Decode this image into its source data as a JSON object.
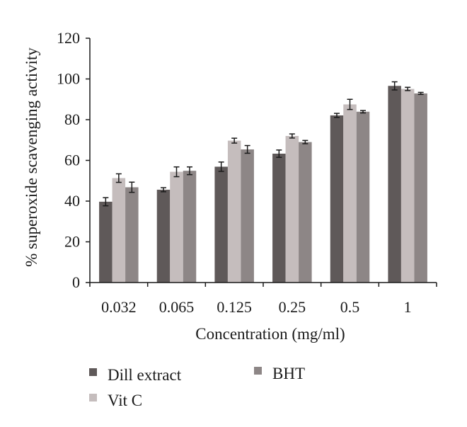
{
  "chart_data": {
    "type": "bar",
    "xlabel": "Concentration (mg/ml)",
    "ylabel": "% superoxide scavenging activity",
    "ylim": [
      0,
      120
    ],
    "yticks": [
      0,
      20,
      40,
      60,
      80,
      100,
      120
    ],
    "grid": false,
    "legend_position": "bottom",
    "categories": [
      "0.032",
      "0.065",
      "0.125",
      "0.25",
      "0.5",
      "1"
    ],
    "series": [
      {
        "name": "Dill extract",
        "color": "#5f5959",
        "values": [
          39.7,
          45.6,
          56.9,
          63.3,
          82.1,
          96.6
        ],
        "errors": [
          2.0,
          1.0,
          2.3,
          1.8,
          1.0,
          2.0
        ]
      },
      {
        "name": "Vit C",
        "color": "#c5bdbd",
        "values": [
          51.3,
          54.4,
          69.7,
          72.0,
          87.5,
          95.1
        ],
        "errors": [
          2.1,
          2.4,
          1.2,
          1.0,
          2.5,
          0.8
        ]
      },
      {
        "name": "BHT",
        "color": "#8d8686",
        "values": [
          46.8,
          54.9,
          65.4,
          69.0,
          83.9,
          92.9
        ],
        "errors": [
          2.5,
          1.9,
          1.9,
          0.8,
          0.6,
          0.5
        ]
      }
    ]
  }
}
